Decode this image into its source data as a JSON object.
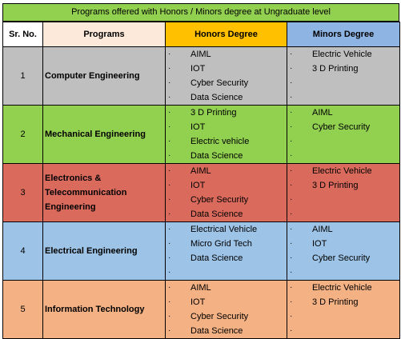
{
  "title": "Programs offered with Honors / Minors degree at Ungraduate level",
  "headers": {
    "sr": "Sr. No.",
    "programs": "Programs",
    "honors": "Honors Degree",
    "minors": "Minors Degree"
  },
  "bullet": "·",
  "rows": [
    {
      "sr": "1",
      "program": "Computer Engineering",
      "color": "#bfbfbf",
      "honors": [
        "AIML",
        "IOT",
        "Cyber Security",
        "Data Science"
      ],
      "minors": [
        "Electric Vehicle",
        "3 D Printing"
      ]
    },
    {
      "sr": "2",
      "program": "Mechanical Engineering",
      "color": "#92d050",
      "honors": [
        "3 D Printing",
        "IOT",
        "Electric vehicle",
        "Data Science"
      ],
      "minors": [
        "AIML",
        "Cyber Security"
      ]
    },
    {
      "sr": "3",
      "program": "Electronics & Telecommunication Engineering",
      "color": "#da6b5c",
      "honors": [
        "AIML",
        "IOT",
        "Cyber Security",
        "Data Science"
      ],
      "minors": [
        "Electric Vehicle",
        "3 D Printing"
      ]
    },
    {
      "sr": "4",
      "program": "Electrical Engineering",
      "color": "#9dc3e6",
      "honors": [
        "Electrical Vehicle",
        "Micro Grid Tech",
        "Data Science"
      ],
      "minors": [
        "AIML",
        "IOT",
        "Cyber Security"
      ]
    },
    {
      "sr": "5",
      "program": "Information Technology",
      "color": "#f4b183",
      "honors": [
        "AIML",
        "IOT",
        "Cyber Security",
        "Data Science"
      ],
      "minors": [
        "Electric Vehicle",
        "3 D Printing"
      ]
    }
  ]
}
